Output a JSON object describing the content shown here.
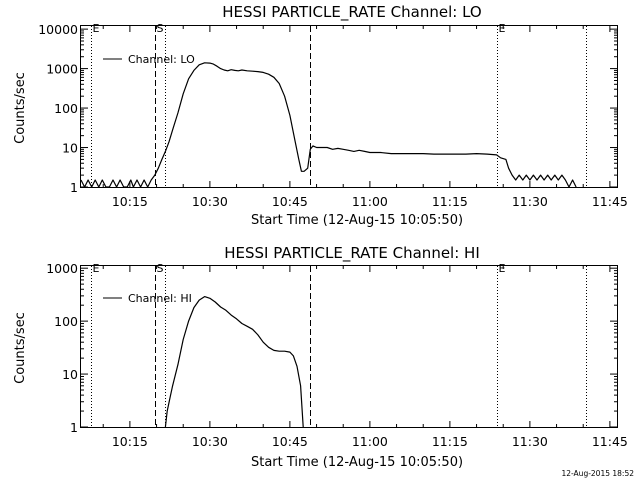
{
  "timestamp": "12-Aug-2015 18:52",
  "chart_data": [
    {
      "type": "line",
      "title": "HESSI PARTICLE_RATE Channel: LO",
      "xlabel": "Start Time (12-Aug-15 10:05:50)",
      "ylabel": "Counts/sec",
      "yscale": "log",
      "xlim": [
        "10:05:50",
        "11:46:20"
      ],
      "ylim": [
        1,
        12000
      ],
      "xticks": [
        "10:15",
        "10:30",
        "10:45",
        "11:00",
        "11:15",
        "11:30",
        "11:45"
      ],
      "yticks": [
        {
          "value": 1,
          "label": "1"
        },
        {
          "value": 10,
          "label": "10"
        },
        {
          "value": 100,
          "label": "100"
        },
        {
          "value": 1000,
          "label": "1000"
        },
        {
          "value": 10000,
          "label": "10000"
        }
      ],
      "legend": {
        "position": "top-left",
        "label": "Channel: LO"
      },
      "markers": [
        {
          "time": "10:07:40",
          "label": "E",
          "style": "dotted"
        },
        {
          "time": "10:19:40",
          "label": "S",
          "style": "dashed"
        },
        {
          "time": "10:21:40",
          "label": "",
          "style": "dotted"
        },
        {
          "time": "10:48:50",
          "label": "",
          "style": "dashed"
        },
        {
          "time": "11:23:45",
          "label": "E",
          "style": "dotted"
        },
        {
          "time": "11:40:30",
          "label": "",
          "style": "dotted"
        }
      ],
      "series": [
        {
          "x": [
            "10:05:50",
            "10:06:30",
            "10:07:10",
            "10:07:50",
            "10:08:30",
            "10:09:10",
            "10:09:50",
            "10:10:30",
            "10:11:10",
            "10:11:50",
            "10:12:30",
            "10:13:10",
            "10:13:50",
            "10:14:30",
            "10:15:10",
            "10:15:40",
            "10:16:20",
            "10:17:00",
            "10:17:40",
            "10:18:20",
            "10:19:00",
            "10:19:40",
            "10:20:20",
            "10:21:00",
            "10:21:40",
            "10:22:20",
            "10:23:00",
            "10:24:00",
            "10:25:00",
            "10:26:00",
            "10:27:00",
            "10:28:00",
            "10:29:00",
            "10:30:00",
            "10:30:40",
            "10:31:20",
            "10:32:00",
            "10:32:40",
            "10:33:20",
            "10:34:00",
            "10:34:40",
            "10:35:20",
            "10:36:00",
            "10:37:00",
            "10:38:00",
            "10:39:00",
            "10:40:00",
            "10:41:00",
            "10:42:00",
            "10:43:00",
            "10:44:00",
            "10:45:00",
            "10:46:00",
            "10:46:40",
            "10:47:10",
            "10:47:40",
            "10:48:20",
            "10:48:50",
            "10:49:20",
            "10:50:00",
            "10:51:00",
            "10:52:00",
            "10:53:00",
            "10:54:00",
            "10:55:00",
            "10:56:00",
            "10:57:00",
            "10:58:00",
            "10:59:00",
            "11:00:00",
            "11:02:00",
            "11:04:00",
            "11:06:00",
            "11:08:00",
            "11:10:00",
            "11:12:00",
            "11:14:00",
            "11:16:00",
            "11:18:00",
            "11:20:00",
            "11:22:00",
            "11:23:45",
            "11:24:30",
            "11:25:30",
            "11:26:00",
            "11:26:40",
            "11:27:20",
            "11:28:00",
            "11:28:40",
            "11:29:20",
            "11:30:00",
            "11:30:40",
            "11:31:20",
            "11:32:00",
            "11:32:40",
            "11:33:20",
            "11:34:00",
            "11:34:40",
            "11:35:20",
            "11:36:00",
            "11:36:40",
            "11:37:20",
            "11:38:00",
            "11:38:40"
          ],
          "y": [
            1.5,
            1,
            1.5,
            1,
            1.5,
            1,
            1.5,
            1,
            1,
            1.5,
            1,
            1.5,
            1,
            1,
            1.5,
            1,
            1.5,
            1,
            1.5,
            1,
            1.5,
            2,
            3,
            5,
            8,
            14,
            28,
            75,
            230,
            550,
            900,
            1250,
            1400,
            1380,
            1300,
            1150,
            1000,
            920,
            880,
            940,
            900,
            880,
            920,
            880,
            860,
            840,
            800,
            720,
            600,
            420,
            200,
            65,
            14,
            5,
            2.5,
            2.5,
            3,
            9,
            11,
            10,
            10,
            10,
            9,
            9.5,
            9,
            8.5,
            8,
            8.5,
            8,
            7.5,
            7.5,
            7,
            7,
            7,
            7,
            6.8,
            6.8,
            6.8,
            6.8,
            7,
            6.8,
            6.5,
            5.5,
            5,
            3,
            2,
            1.5,
            2,
            1.5,
            2,
            1.5,
            2,
            1.5,
            2,
            1.5,
            2,
            1.5,
            2,
            1.5,
            2,
            1.5,
            1,
            1.5,
            1
          ]
        }
      ]
    },
    {
      "type": "line",
      "title": "HESSI PARTICLE_RATE Channel: HI",
      "xlabel": "Start Time (12-Aug-15 10:05:50)",
      "ylabel": "Counts/sec",
      "yscale": "log",
      "xlim": [
        "10:05:50",
        "11:46:20"
      ],
      "ylim": [
        1,
        1100
      ],
      "xticks": [
        "10:15",
        "10:30",
        "10:45",
        "11:00",
        "11:15",
        "11:30",
        "11:45"
      ],
      "yticks": [
        {
          "value": 1,
          "label": "1"
        },
        {
          "value": 10,
          "label": "10"
        },
        {
          "value": 100,
          "label": "100"
        },
        {
          "value": 1000,
          "label": "1000"
        }
      ],
      "legend": {
        "position": "top-left",
        "label": "Channel: HI"
      },
      "markers": [
        {
          "time": "10:07:40",
          "label": "E",
          "style": "dotted"
        },
        {
          "time": "10:19:40",
          "label": "S",
          "style": "dashed"
        },
        {
          "time": "10:21:40",
          "label": "",
          "style": "dotted"
        },
        {
          "time": "10:48:50",
          "label": "",
          "style": "dashed"
        },
        {
          "time": "11:23:45",
          "label": "E",
          "style": "dotted"
        },
        {
          "time": "11:40:30",
          "label": "",
          "style": "dotted"
        }
      ],
      "series": [
        {
          "x": [
            "10:21:40",
            "10:22:00",
            "10:22:30",
            "10:23:00",
            "10:24:00",
            "10:25:00",
            "10:26:00",
            "10:27:00",
            "10:28:00",
            "10:29:00",
            "10:30:00",
            "10:31:00",
            "10:32:00",
            "10:33:00",
            "10:34:00",
            "10:35:00",
            "10:36:00",
            "10:37:00",
            "10:38:00",
            "10:39:00",
            "10:40:00",
            "10:41:00",
            "10:42:00",
            "10:43:00",
            "10:44:00",
            "10:45:00",
            "10:45:40",
            "10:46:20",
            "10:47:00",
            "10:47:30"
          ],
          "y": [
            1,
            2,
            3.5,
            6,
            15,
            45,
            100,
            180,
            250,
            290,
            270,
            230,
            185,
            160,
            130,
            110,
            90,
            80,
            70,
            55,
            40,
            32,
            28,
            27,
            27,
            26,
            22,
            14,
            6,
            1
          ]
        }
      ]
    }
  ]
}
